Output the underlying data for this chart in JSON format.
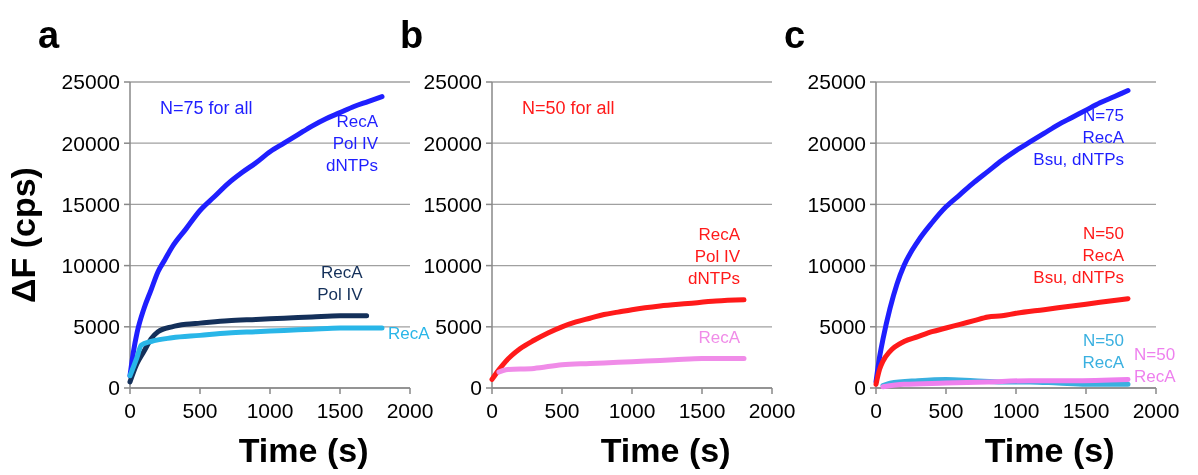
{
  "chart_data": [
    {
      "type": "line",
      "title": "a",
      "xlabel": "Time (s)",
      "ylabel": "ΔF (cps)",
      "xlim": [
        0,
        2000
      ],
      "xticks": [
        0,
        500,
        1000,
        1500,
        2000
      ],
      "ylim": [
        0,
        25000
      ],
      "yticks": [
        0,
        5000,
        10000,
        15000,
        20000,
        25000
      ],
      "grid": "y",
      "annotations": [
        "N=75 for all"
      ],
      "series": [
        {
          "name": "RecA\nPol IV\ndNTPs",
          "color": "#1f1fff",
          "x": [
            0,
            25,
            50,
            100,
            150,
            200,
            250,
            300,
            400,
            500,
            600,
            700,
            800,
            900,
            1000,
            1100,
            1200,
            1300,
            1400,
            1500,
            1600,
            1700,
            1800
          ],
          "values": [
            1000,
            3000,
            4500,
            6500,
            8000,
            9500,
            10500,
            11500,
            13000,
            14500,
            15600,
            16700,
            17600,
            18400,
            19300,
            20000,
            20700,
            21400,
            22000,
            22500,
            23000,
            23400,
            23800
          ]
        },
        {
          "name": "RecA\nPol IV",
          "color": "#14305a",
          "x": [
            0,
            50,
            100,
            150,
            200,
            300,
            400,
            500,
            700,
            900,
            1100,
            1300,
            1500,
            1690
          ],
          "values": [
            500,
            2000,
            3000,
            4000,
            4600,
            5000,
            5200,
            5300,
            5500,
            5600,
            5700,
            5800,
            5900,
            5900
          ]
        },
        {
          "name": "RecA",
          "color": "#29b6e8",
          "x": [
            0,
            50,
            80,
            150,
            300,
            500,
            700,
            900,
            1100,
            1300,
            1500,
            1800
          ],
          "values": [
            1000,
            2500,
            3500,
            3800,
            4100,
            4300,
            4500,
            4600,
            4700,
            4800,
            4900,
            4900
          ]
        }
      ]
    },
    {
      "type": "line",
      "title": "b",
      "xlabel": "Time (s)",
      "xlim": [
        0,
        2000
      ],
      "xticks": [
        0,
        500,
        1000,
        1500,
        2000
      ],
      "ylim": [
        0,
        25000
      ],
      "yticks": [
        0,
        5000,
        10000,
        15000,
        20000,
        25000
      ],
      "grid": "y",
      "annotations": [
        "N=50 for all"
      ],
      "series": [
        {
          "name": "RecA\nPol IV\ndNTPs",
          "color": "#ff1a1a",
          "x": [
            0,
            50,
            100,
            200,
            300,
            400,
            500,
            600,
            700,
            800,
            900,
            1000,
            1200,
            1400,
            1600,
            1800
          ],
          "values": [
            700,
            1500,
            2200,
            3200,
            3900,
            4500,
            5000,
            5400,
            5700,
            6000,
            6200,
            6400,
            6700,
            6900,
            7100,
            7200
          ]
        },
        {
          "name": "RecA",
          "color": "#f08ce8",
          "x": [
            50,
            100,
            300,
            500,
            700,
            900,
            1100,
            1300,
            1500,
            1800
          ],
          "values": [
            1300,
            1500,
            1600,
            1900,
            2000,
            2100,
            2200,
            2300,
            2400,
            2400
          ]
        }
      ]
    },
    {
      "type": "line",
      "title": "c",
      "xlabel": "Time (s)",
      "xlim": [
        0,
        2000
      ],
      "xticks": [
        0,
        500,
        1000,
        1500,
        2000
      ],
      "ylim": [
        0,
        25000
      ],
      "yticks": [
        0,
        5000,
        10000,
        15000,
        20000,
        25000
      ],
      "grid": "y",
      "series": [
        {
          "name": "N=75\nRecA\nBsu, dNTPs",
          "color": "#1f1fff",
          "x": [
            0,
            25,
            50,
            100,
            150,
            200,
            300,
            400,
            500,
            600,
            700,
            800,
            900,
            1000,
            1100,
            1200,
            1300,
            1400,
            1500,
            1600,
            1700,
            1800
          ],
          "values": [
            500,
            2500,
            4000,
            6500,
            8500,
            10000,
            12000,
            13500,
            14800,
            15800,
            16800,
            17700,
            18600,
            19400,
            20100,
            20800,
            21500,
            22100,
            22700,
            23300,
            23800,
            24300
          ]
        },
        {
          "name": "N=50\nRecA\nBsu, dNTPs",
          "color": "#ff1a1a",
          "x": [
            0,
            25,
            50,
            100,
            200,
            300,
            400,
            500,
            600,
            700,
            800,
            900,
            1000,
            1200,
            1400,
            1600,
            1800
          ],
          "values": [
            300,
            1500,
            2200,
            3000,
            3800,
            4200,
            4600,
            4900,
            5200,
            5500,
            5800,
            5900,
            6100,
            6400,
            6700,
            7000,
            7300
          ]
        },
        {
          "name": "N=50\nRecA",
          "color": "#3ab0e0",
          "x": [
            50,
            100,
            300,
            500,
            700,
            900,
            1100,
            1300,
            1500,
            1800
          ],
          "values": [
            200,
            400,
            600,
            700,
            600,
            500,
            500,
            400,
            300,
            300
          ]
        },
        {
          "name": "N=50\nRecA",
          "color": "#ee80ee",
          "x": [
            50,
            200,
            500,
            800,
            1100,
            1400,
            1800
          ],
          "values": [
            100,
            300,
            400,
            500,
            600,
            600,
            700
          ]
        }
      ]
    }
  ]
}
